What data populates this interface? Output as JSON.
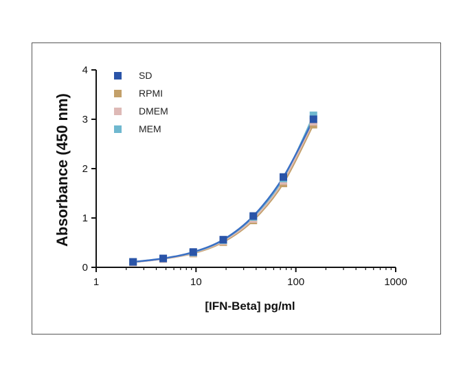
{
  "chart_data": {
    "type": "scatter",
    "x_scale": "log",
    "xlabel": "[IFN-Beta] pg/ml",
    "ylabel": "Absorbance (450 nm)",
    "xlim": [
      1,
      1000
    ],
    "ylim": [
      0,
      4
    ],
    "x_ticks": [
      "1",
      "10",
      "100",
      "1000"
    ],
    "y_ticks": [
      "0",
      "1",
      "2",
      "3",
      "4"
    ],
    "legend_position": "top-left",
    "grid": false,
    "curve_color": "#3a6fc4",
    "series": [
      {
        "name": "SD",
        "color": "#2a54a8",
        "x": [
          2.34,
          4.69,
          9.38,
          18.75,
          37.5,
          75,
          150
        ],
        "y": [
          0.11,
          0.18,
          0.31,
          0.56,
          1.04,
          1.83,
          3.0
        ]
      },
      {
        "name": "RPMI",
        "color": "#c3a06a",
        "x": [
          2.34,
          4.69,
          9.38,
          18.75,
          37.5,
          75,
          150
        ],
        "y": [
          0.1,
          0.17,
          0.28,
          0.51,
          0.95,
          1.7,
          2.89
        ]
      },
      {
        "name": "DMEM",
        "color": "#deb9b6",
        "x": [
          2.34,
          4.69,
          9.38,
          18.75,
          37.5,
          75,
          150
        ],
        "y": [
          0.1,
          0.17,
          0.29,
          0.53,
          0.98,
          1.75,
          2.95
        ]
      },
      {
        "name": "MEM",
        "color": "#6fb8cf",
        "x": [
          2.34,
          4.69,
          9.38,
          18.75,
          37.5,
          75,
          150
        ],
        "y": [
          0.11,
          0.18,
          0.3,
          0.55,
          1.02,
          1.8,
          3.08
        ]
      }
    ]
  }
}
